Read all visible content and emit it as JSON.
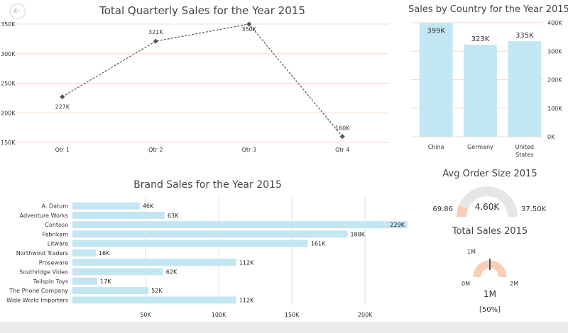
{
  "colors": {
    "gridline": "#f7d9cc",
    "line": "#555555",
    "bar": "#c3e6f3",
    "gauge_track": "#e6e6e6",
    "gauge_fill": "#f9cdb7",
    "text": "#333333"
  },
  "icons": {
    "back": "back-arrow-icon"
  },
  "chart_data": [
    {
      "id": "quarterly",
      "type": "line",
      "title": "Total Quarterly Sales for the Year 2015",
      "categories": [
        "Qtr 1",
        "Qtr 2",
        "Qtr 3",
        "Qtr 4"
      ],
      "values": [
        227,
        321,
        350,
        160
      ],
      "data_labels": [
        "227K",
        "321K",
        "350K",
        "160K"
      ],
      "ylim": [
        150,
        350
      ],
      "yticks": [
        150,
        200,
        250,
        300,
        350
      ],
      "ytick_labels": [
        "150K",
        "200K",
        "250K",
        "300K",
        "350K"
      ],
      "grid": true
    },
    {
      "id": "country",
      "type": "bar",
      "title": "Sales by Country for the Year 2015",
      "categories": [
        "China",
        "Germany",
        "United States"
      ],
      "values": [
        399,
        323,
        335
      ],
      "data_labels": [
        "399K",
        "323K",
        "335K"
      ],
      "ylim": [
        0,
        400
      ],
      "yticks": [
        0,
        100,
        200,
        300,
        400
      ],
      "ytick_labels": [
        "0K",
        "100K",
        "200K",
        "300K",
        "400K"
      ],
      "grid": true
    },
    {
      "id": "brand",
      "type": "bar",
      "orientation": "horizontal",
      "title": "Brand Sales for the Year 2015",
      "categories": [
        "A. Datum",
        "Adventure Works",
        "Contoso",
        "Fabrikam",
        "Litware",
        "Northwind Traders",
        "Proseware",
        "Southridge Video",
        "Tailspin Toys",
        "The Phone Company",
        "Wide World Importers"
      ],
      "values": [
        46,
        63,
        229,
        188,
        161,
        16,
        112,
        62,
        17,
        52,
        112
      ],
      "data_labels": [
        "46K",
        "63K",
        "229K",
        "188K",
        "161K",
        "16K",
        "112K",
        "62K",
        "17K",
        "52K",
        "112K"
      ],
      "xlim": [
        0,
        230
      ],
      "xticks": [
        50,
        100,
        150,
        200
      ],
      "xtick_labels": [
        "50K",
        "100K",
        "150K",
        "200K"
      ],
      "grid": true
    },
    {
      "id": "avg_order",
      "type": "gauge",
      "title": "Avg Order Size 2015",
      "min": 69.86,
      "max": 37500,
      "value": 4600,
      "min_label": "69.86",
      "max_label": "37.50K",
      "value_label": "4.60K"
    },
    {
      "id": "total_sales",
      "type": "gauge",
      "title": "Total Sales 2015",
      "min": 0,
      "max": 2,
      "value": 1,
      "target": 1,
      "min_label": "0M",
      "max_label": "2M",
      "target_label": "1M",
      "value_label": "1M",
      "percent_label": "[50%]"
    }
  ]
}
